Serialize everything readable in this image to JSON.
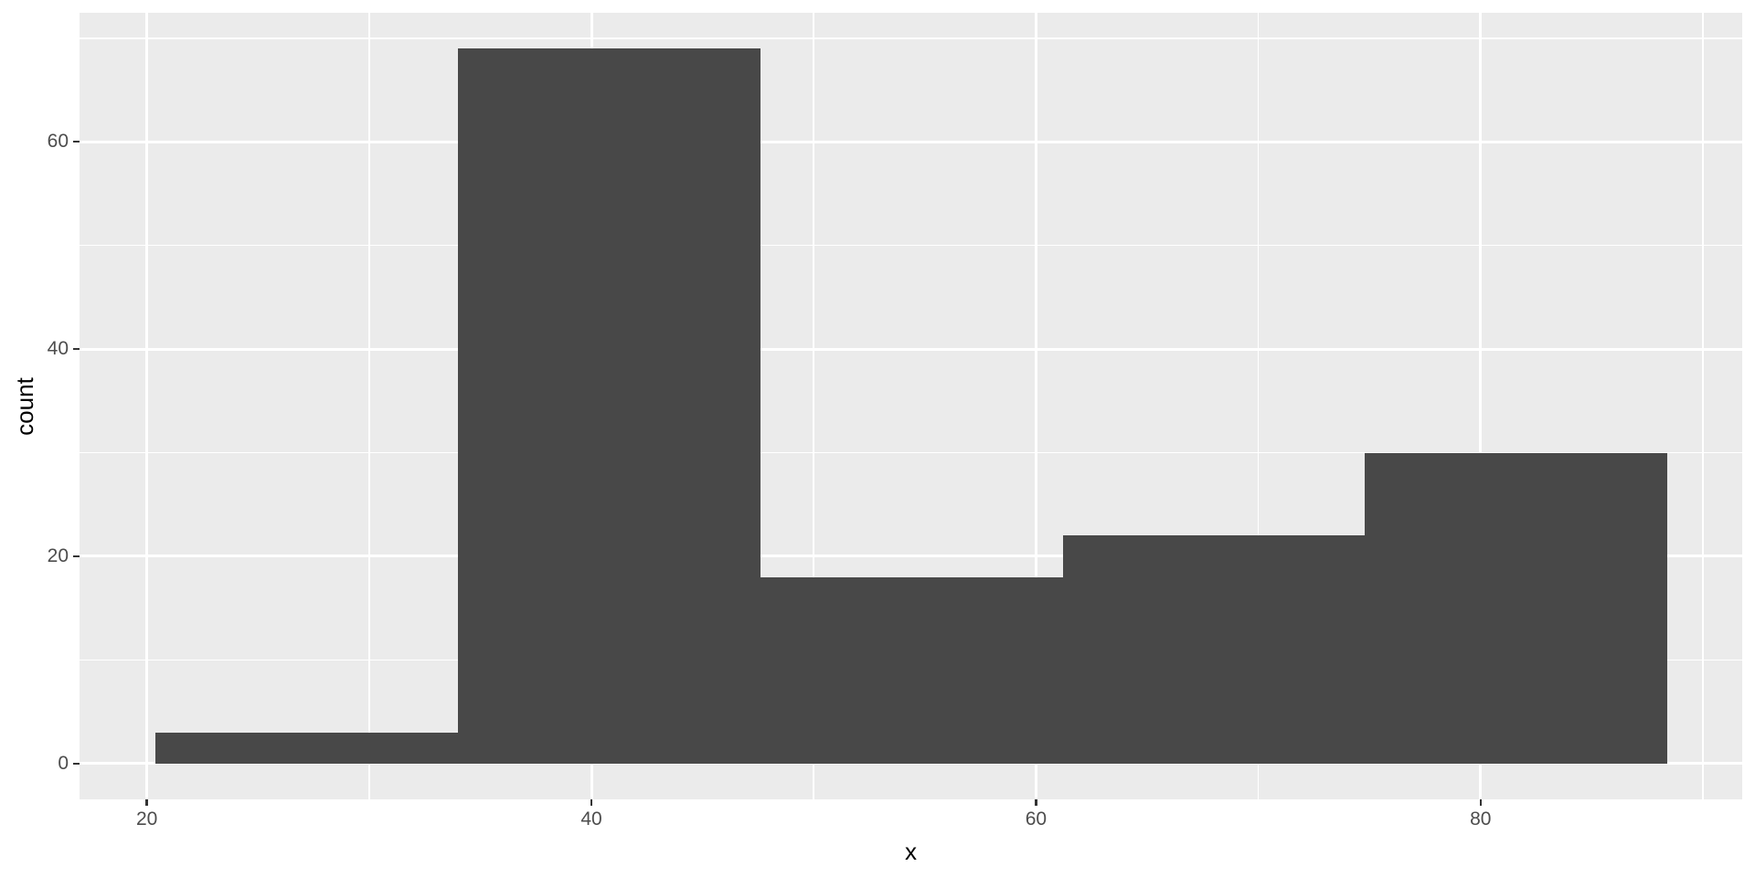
{
  "chart_data": {
    "type": "bar",
    "subtype": "histogram",
    "title": "",
    "xlabel": "x",
    "ylabel": "count",
    "bins": [
      {
        "x0": 20.4,
        "x1": 34.0,
        "count": 3
      },
      {
        "x0": 34.0,
        "x1": 47.6,
        "count": 69
      },
      {
        "x0": 47.6,
        "x1": 61.2,
        "count": 18
      },
      {
        "x0": 61.2,
        "x1": 74.8,
        "count": 22
      },
      {
        "x0": 74.8,
        "x1": 88.4,
        "count": 30
      }
    ],
    "x_ticks": [
      20,
      40,
      60,
      80
    ],
    "y_ticks": [
      0,
      20,
      40,
      60
    ],
    "x_minor_ticks": [
      30,
      50,
      70,
      90
    ],
    "y_minor_ticks": [
      10,
      30,
      50,
      70
    ],
    "xlim": [
      16.97,
      91.77
    ],
    "ylim": [
      -3.45,
      72.45
    ],
    "grid": true,
    "legend": false,
    "colors": {
      "bar_fill": "#484848",
      "panel_background": "#EBEBEB",
      "gridline": "#FFFFFF",
      "tick_label": "#4D4D4D",
      "tick_mark": "#333333",
      "axis_title": "#000000",
      "outer_background": "#FFFFFF"
    }
  }
}
